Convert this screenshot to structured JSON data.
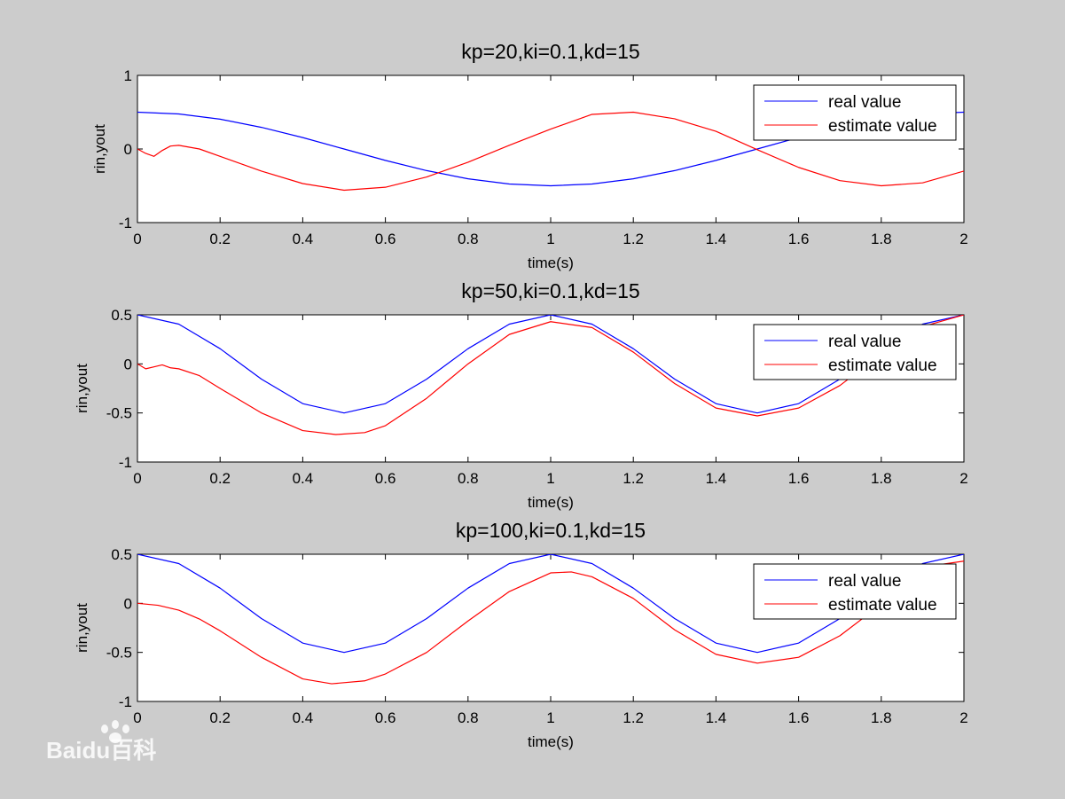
{
  "watermark": {
    "text": "Baidu百科"
  },
  "colors": {
    "background": "#cccccc",
    "axes_face": "#ffffff",
    "real": "#0000ff",
    "estimate": "#ff0000"
  },
  "chart_data": [
    {
      "type": "line",
      "title": "kp=20,ki=0.1,kd=15",
      "xlabel": "time(s)",
      "ylabel": "rin,yout",
      "xlim": [
        0,
        2
      ],
      "ylim": [
        -1,
        1
      ],
      "xticks": [
        0,
        0.2,
        0.4,
        0.6,
        0.8,
        1,
        1.2,
        1.4,
        1.6,
        1.8,
        2
      ],
      "xtick_labels": [
        "0",
        "0.2",
        "0.4",
        "0.6",
        "0.8",
        "1",
        "1.2",
        "1.4",
        "1.6",
        "1.8",
        "2"
      ],
      "yticks": [
        -1,
        0,
        1
      ],
      "ytick_labels": [
        "-1",
        "0",
        "1"
      ],
      "grid": false,
      "legend": "top-right",
      "series": [
        {
          "name": "real value",
          "color": "#0000ff",
          "x": [
            0,
            0.1,
            0.2,
            0.3,
            0.4,
            0.5,
            0.6,
            0.7,
            0.8,
            0.9,
            1.0,
            1.1,
            1.2,
            1.3,
            1.4,
            1.5,
            1.6,
            1.7,
            1.8,
            1.9,
            2.0
          ],
          "values": [
            0.5,
            0.476,
            0.405,
            0.294,
            0.155,
            0.0,
            -0.155,
            -0.294,
            -0.405,
            -0.476,
            -0.5,
            -0.476,
            -0.405,
            -0.294,
            -0.155,
            0.0,
            0.155,
            0.294,
            0.405,
            0.476,
            0.5
          ]
        },
        {
          "name": "estimate value",
          "color": "#ff0000",
          "x": [
            0,
            0.02,
            0.04,
            0.06,
            0.08,
            0.1,
            0.15,
            0.2,
            0.3,
            0.4,
            0.5,
            0.6,
            0.7,
            0.8,
            0.9,
            1.0,
            1.1,
            1.2,
            1.3,
            1.4,
            1.5,
            1.6,
            1.7,
            1.8,
            1.9,
            2.0
          ],
          "values": [
            0.0,
            -0.06,
            -0.1,
            -0.02,
            0.04,
            0.05,
            0.0,
            -0.1,
            -0.3,
            -0.47,
            -0.56,
            -0.52,
            -0.38,
            -0.18,
            0.05,
            0.27,
            0.47,
            0.5,
            0.41,
            0.24,
            -0.01,
            -0.25,
            -0.43,
            -0.5,
            -0.46,
            -0.3
          ]
        }
      ]
    },
    {
      "type": "line",
      "title": "kp=50,ki=0.1,kd=15",
      "xlabel": "time(s)",
      "ylabel": "rin,yout",
      "xlim": [
        0,
        2
      ],
      "ylim": [
        -1,
        0.5
      ],
      "xticks": [
        0,
        0.2,
        0.4,
        0.6,
        0.8,
        1,
        1.2,
        1.4,
        1.6,
        1.8,
        2
      ],
      "xtick_labels": [
        "0",
        "0.2",
        "0.4",
        "0.6",
        "0.8",
        "1",
        "1.2",
        "1.4",
        "1.6",
        "1.8",
        "2"
      ],
      "yticks": [
        -1,
        -0.5,
        0,
        0.5
      ],
      "ytick_labels": [
        "-1",
        "-0.5",
        "0",
        "0.5"
      ],
      "grid": false,
      "legend": "top-right",
      "series": [
        {
          "name": "real value",
          "color": "#0000ff",
          "x": [
            0,
            0.1,
            0.2,
            0.3,
            0.4,
            0.5,
            0.6,
            0.7,
            0.8,
            0.9,
            1.0,
            1.1,
            1.2,
            1.3,
            1.4,
            1.5,
            1.6,
            1.7,
            1.8,
            1.9,
            2.0
          ],
          "values": [
            0.5,
            0.405,
            0.155,
            -0.155,
            -0.405,
            -0.5,
            -0.405,
            -0.155,
            0.155,
            0.405,
            0.5,
            0.405,
            0.155,
            -0.155,
            -0.405,
            -0.5,
            -0.405,
            -0.155,
            0.155,
            0.405,
            0.5
          ]
        },
        {
          "name": "estimate value",
          "color": "#ff0000",
          "x": [
            0,
            0.02,
            0.04,
            0.06,
            0.08,
            0.1,
            0.15,
            0.2,
            0.3,
            0.4,
            0.48,
            0.55,
            0.6,
            0.7,
            0.8,
            0.9,
            1.0,
            1.1,
            1.2,
            1.3,
            1.4,
            1.5,
            1.6,
            1.7,
            1.8,
            1.9,
            2.0
          ],
          "values": [
            0.0,
            -0.05,
            -0.03,
            -0.01,
            -0.04,
            -0.05,
            -0.12,
            -0.25,
            -0.5,
            -0.68,
            -0.72,
            -0.7,
            -0.63,
            -0.35,
            0.0,
            0.3,
            0.43,
            0.37,
            0.12,
            -0.2,
            -0.45,
            -0.53,
            -0.45,
            -0.22,
            0.1,
            0.38,
            0.5
          ]
        }
      ]
    },
    {
      "type": "line",
      "title": "kp=100,ki=0.1,kd=15",
      "xlabel": "time(s)",
      "ylabel": "rin,yout",
      "xlim": [
        0,
        2
      ],
      "ylim": [
        -1,
        0.5
      ],
      "xticks": [
        0,
        0.2,
        0.4,
        0.6,
        0.8,
        1,
        1.2,
        1.4,
        1.6,
        1.8,
        2
      ],
      "xtick_labels": [
        "0",
        "0.2",
        "0.4",
        "0.6",
        "0.8",
        "1",
        "1.2",
        "1.4",
        "1.6",
        "1.8",
        "2"
      ],
      "yticks": [
        -1,
        -0.5,
        0,
        0.5
      ],
      "ytick_labels": [
        "-1",
        "-0.5",
        "0",
        "0.5"
      ],
      "grid": false,
      "legend": "top-right",
      "series": [
        {
          "name": "real value",
          "color": "#0000ff",
          "x": [
            0,
            0.1,
            0.2,
            0.3,
            0.4,
            0.5,
            0.6,
            0.7,
            0.8,
            0.9,
            1.0,
            1.1,
            1.2,
            1.3,
            1.4,
            1.5,
            1.6,
            1.7,
            1.8,
            1.9,
            2.0
          ],
          "values": [
            0.5,
            0.405,
            0.155,
            -0.155,
            -0.405,
            -0.5,
            -0.405,
            -0.155,
            0.155,
            0.405,
            0.5,
            0.405,
            0.155,
            -0.155,
            -0.405,
            -0.5,
            -0.405,
            -0.155,
            0.155,
            0.405,
            0.5
          ]
        },
        {
          "name": "estimate value",
          "color": "#ff0000",
          "x": [
            0,
            0.05,
            0.1,
            0.15,
            0.2,
            0.3,
            0.4,
            0.47,
            0.55,
            0.6,
            0.7,
            0.8,
            0.9,
            1.0,
            1.05,
            1.1,
            1.2,
            1.3,
            1.4,
            1.5,
            1.6,
            1.7,
            1.8,
            1.9,
            1.95,
            2.0
          ],
          "values": [
            0.0,
            -0.02,
            -0.07,
            -0.16,
            -0.28,
            -0.55,
            -0.77,
            -0.82,
            -0.79,
            -0.72,
            -0.5,
            -0.18,
            0.12,
            0.31,
            0.32,
            0.27,
            0.05,
            -0.27,
            -0.52,
            -0.61,
            -0.55,
            -0.33,
            -0.01,
            0.3,
            0.4,
            0.43
          ]
        }
      ]
    }
  ]
}
